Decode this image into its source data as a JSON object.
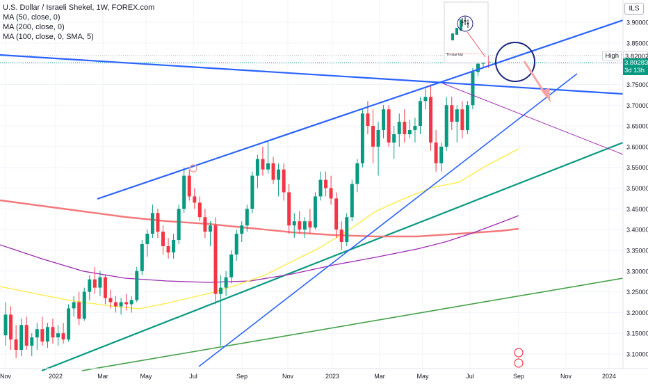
{
  "header": {
    "symbol_title": "U.S. Dollar / Israeli Shekel, 1W, FOREX.com",
    "indicators": [
      "MA (50, close, 0)",
      "MA (200, close, 0)",
      "MA (100, close, 0, SMA, 5)"
    ],
    "currency": "ILS"
  },
  "price_tags": {
    "high_label": "High",
    "high_value": "3.82002",
    "last_value": "3.80283",
    "countdown": "3d 13h"
  },
  "inset_annotation": {
    "text": "Tri-star top"
  },
  "colors": {
    "up": "#089981",
    "down": "#f23645",
    "trendline": "#2962ff",
    "ma50": "#ffeb3b",
    "ma200": "#f4787a",
    "ma100": "#9c27b0",
    "support_teal": "#089981",
    "support_green": "#43a047",
    "arrow": "#f7a4a4"
  },
  "chart_data": {
    "type": "candlestick",
    "y_axis_ticks": [
      "3.90000",
      "3.85000",
      "3.80000",
      "3.75000",
      "3.70000",
      "3.65000",
      "3.60000",
      "3.55000",
      "3.50000",
      "3.45000",
      "3.40000",
      "3.35000",
      "3.30000",
      "3.25000",
      "3.20000",
      "3.15000",
      "3.10000"
    ],
    "x_axis_ticks": [
      "Nov",
      "2022",
      "Mar",
      "May",
      "Jul",
      "Sep",
      "Nov",
      "2023",
      "Mar",
      "May",
      "Jul",
      "Sep",
      "Nov",
      "2024"
    ],
    "ylim": [
      3.08,
      3.92
    ],
    "candles": [
      {
        "o": 3.145,
        "h": 3.225,
        "l": 3.12,
        "c": 3.195
      },
      {
        "o": 3.195,
        "h": 3.215,
        "l": 3.11,
        "c": 3.135
      },
      {
        "o": 3.135,
        "h": 3.17,
        "l": 3.09,
        "c": 3.11
      },
      {
        "o": 3.11,
        "h": 3.185,
        "l": 3.095,
        "c": 3.17
      },
      {
        "o": 3.17,
        "h": 3.19,
        "l": 3.11,
        "c": 3.12
      },
      {
        "o": 3.12,
        "h": 3.15,
        "l": 3.095,
        "c": 3.14
      },
      {
        "o": 3.14,
        "h": 3.175,
        "l": 3.11,
        "c": 3.16
      },
      {
        "o": 3.16,
        "h": 3.19,
        "l": 3.12,
        "c": 3.13
      },
      {
        "o": 3.13,
        "h": 3.175,
        "l": 3.115,
        "c": 3.165
      },
      {
        "o": 3.165,
        "h": 3.185,
        "l": 3.125,
        "c": 3.14
      },
      {
        "o": 3.14,
        "h": 3.17,
        "l": 3.12,
        "c": 3.15
      },
      {
        "o": 3.15,
        "h": 3.175,
        "l": 3.125,
        "c": 3.135
      },
      {
        "o": 3.135,
        "h": 3.22,
        "l": 3.13,
        "c": 3.21
      },
      {
        "o": 3.21,
        "h": 3.24,
        "l": 3.19,
        "c": 3.225
      },
      {
        "o": 3.225,
        "h": 3.25,
        "l": 3.17,
        "c": 3.185
      },
      {
        "o": 3.185,
        "h": 3.26,
        "l": 3.18,
        "c": 3.25
      },
      {
        "o": 3.25,
        "h": 3.29,
        "l": 3.23,
        "c": 3.28
      },
      {
        "o": 3.28,
        "h": 3.31,
        "l": 3.245,
        "c": 3.26
      },
      {
        "o": 3.26,
        "h": 3.3,
        "l": 3.24,
        "c": 3.285
      },
      {
        "o": 3.285,
        "h": 3.29,
        "l": 3.22,
        "c": 3.235
      },
      {
        "o": 3.235,
        "h": 3.255,
        "l": 3.21,
        "c": 3.225
      },
      {
        "o": 3.225,
        "h": 3.24,
        "l": 3.2,
        "c": 3.215
      },
      {
        "o": 3.215,
        "h": 3.235,
        "l": 3.195,
        "c": 3.225
      },
      {
        "o": 3.225,
        "h": 3.245,
        "l": 3.205,
        "c": 3.22
      },
      {
        "o": 3.22,
        "h": 3.24,
        "l": 3.2,
        "c": 3.23
      },
      {
        "o": 3.23,
        "h": 3.31,
        "l": 3.225,
        "c": 3.3
      },
      {
        "o": 3.3,
        "h": 3.375,
        "l": 3.29,
        "c": 3.365
      },
      {
        "o": 3.365,
        "h": 3.4,
        "l": 3.335,
        "c": 3.39
      },
      {
        "o": 3.39,
        "h": 3.46,
        "l": 3.38,
        "c": 3.44
      },
      {
        "o": 3.44,
        "h": 3.45,
        "l": 3.38,
        "c": 3.395
      },
      {
        "o": 3.395,
        "h": 3.41,
        "l": 3.34,
        "c": 3.36
      },
      {
        "o": 3.36,
        "h": 3.38,
        "l": 3.33,
        "c": 3.345
      },
      {
        "o": 3.345,
        "h": 3.39,
        "l": 3.33,
        "c": 3.375
      },
      {
        "o": 3.375,
        "h": 3.46,
        "l": 3.365,
        "c": 3.45
      },
      {
        "o": 3.45,
        "h": 3.55,
        "l": 3.44,
        "c": 3.53
      },
      {
        "o": 3.53,
        "h": 3.545,
        "l": 3.47,
        "c": 3.48
      },
      {
        "o": 3.48,
        "h": 3.5,
        "l": 3.45,
        "c": 3.465
      },
      {
        "o": 3.465,
        "h": 3.48,
        "l": 3.42,
        "c": 3.43
      },
      {
        "o": 3.43,
        "h": 3.45,
        "l": 3.38,
        "c": 3.395
      },
      {
        "o": 3.395,
        "h": 3.42,
        "l": 3.36,
        "c": 3.41
      },
      {
        "o": 3.41,
        "h": 3.43,
        "l": 3.22,
        "c": 3.245
      },
      {
        "o": 3.245,
        "h": 3.29,
        "l": 3.12,
        "c": 3.26
      },
      {
        "o": 3.26,
        "h": 3.3,
        "l": 3.24,
        "c": 3.285
      },
      {
        "o": 3.285,
        "h": 3.35,
        "l": 3.27,
        "c": 3.34
      },
      {
        "o": 3.34,
        "h": 3.4,
        "l": 3.325,
        "c": 3.39
      },
      {
        "o": 3.39,
        "h": 3.42,
        "l": 3.37,
        "c": 3.41
      },
      {
        "o": 3.41,
        "h": 3.46,
        "l": 3.395,
        "c": 3.45
      },
      {
        "o": 3.45,
        "h": 3.54,
        "l": 3.44,
        "c": 3.53
      },
      {
        "o": 3.53,
        "h": 3.58,
        "l": 3.5,
        "c": 3.57
      },
      {
        "o": 3.57,
        "h": 3.6,
        "l": 3.53,
        "c": 3.545
      },
      {
        "o": 3.545,
        "h": 3.615,
        "l": 3.535,
        "c": 3.56
      },
      {
        "o": 3.56,
        "h": 3.575,
        "l": 3.51,
        "c": 3.52
      },
      {
        "o": 3.52,
        "h": 3.56,
        "l": 3.48,
        "c": 3.545
      },
      {
        "o": 3.545,
        "h": 3.56,
        "l": 3.47,
        "c": 3.49
      },
      {
        "o": 3.49,
        "h": 3.51,
        "l": 3.39,
        "c": 3.41
      },
      {
        "o": 3.41,
        "h": 3.44,
        "l": 3.38,
        "c": 3.42
      },
      {
        "o": 3.42,
        "h": 3.445,
        "l": 3.39,
        "c": 3.4
      },
      {
        "o": 3.4,
        "h": 3.43,
        "l": 3.38,
        "c": 3.42
      },
      {
        "o": 3.42,
        "h": 3.45,
        "l": 3.39,
        "c": 3.405
      },
      {
        "o": 3.405,
        "h": 3.49,
        "l": 3.4,
        "c": 3.48
      },
      {
        "o": 3.48,
        "h": 3.54,
        "l": 3.47,
        "c": 3.52
      },
      {
        "o": 3.52,
        "h": 3.54,
        "l": 3.48,
        "c": 3.5
      },
      {
        "o": 3.5,
        "h": 3.53,
        "l": 3.46,
        "c": 3.475
      },
      {
        "o": 3.475,
        "h": 3.49,
        "l": 3.38,
        "c": 3.4
      },
      {
        "o": 3.4,
        "h": 3.42,
        "l": 3.35,
        "c": 3.37
      },
      {
        "o": 3.37,
        "h": 3.44,
        "l": 3.36,
        "c": 3.43
      },
      {
        "o": 3.43,
        "h": 3.52,
        "l": 3.42,
        "c": 3.51
      },
      {
        "o": 3.51,
        "h": 3.57,
        "l": 3.49,
        "c": 3.56
      },
      {
        "o": 3.56,
        "h": 3.69,
        "l": 3.55,
        "c": 3.68
      },
      {
        "o": 3.68,
        "h": 3.71,
        "l": 3.63,
        "c": 3.65
      },
      {
        "o": 3.65,
        "h": 3.69,
        "l": 3.56,
        "c": 3.6
      },
      {
        "o": 3.6,
        "h": 3.66,
        "l": 3.53,
        "c": 3.64
      },
      {
        "o": 3.64,
        "h": 3.7,
        "l": 3.62,
        "c": 3.69
      },
      {
        "o": 3.69,
        "h": 3.7,
        "l": 3.6,
        "c": 3.61
      },
      {
        "o": 3.61,
        "h": 3.65,
        "l": 3.57,
        "c": 3.63
      },
      {
        "o": 3.63,
        "h": 3.68,
        "l": 3.6,
        "c": 3.66
      },
      {
        "o": 3.66,
        "h": 3.69,
        "l": 3.61,
        "c": 3.63
      },
      {
        "o": 3.63,
        "h": 3.665,
        "l": 3.62,
        "c": 3.64
      },
      {
        "o": 3.64,
        "h": 3.67,
        "l": 3.61,
        "c": 3.65
      },
      {
        "o": 3.65,
        "h": 3.72,
        "l": 3.63,
        "c": 3.71
      },
      {
        "o": 3.71,
        "h": 3.74,
        "l": 3.69,
        "c": 3.72
      },
      {
        "o": 3.72,
        "h": 3.75,
        "l": 3.59,
        "c": 3.61
      },
      {
        "o": 3.61,
        "h": 3.64,
        "l": 3.54,
        "c": 3.56
      },
      {
        "o": 3.56,
        "h": 3.61,
        "l": 3.54,
        "c": 3.6
      },
      {
        "o": 3.6,
        "h": 3.72,
        "l": 3.59,
        "c": 3.7
      },
      {
        "o": 3.7,
        "h": 3.72,
        "l": 3.64,
        "c": 3.66
      },
      {
        "o": 3.66,
        "h": 3.7,
        "l": 3.61,
        "c": 3.69
      },
      {
        "o": 3.69,
        "h": 3.71,
        "l": 3.62,
        "c": 3.64
      },
      {
        "o": 3.64,
        "h": 3.71,
        "l": 3.63,
        "c": 3.7
      },
      {
        "o": 3.7,
        "h": 3.79,
        "l": 3.69,
        "c": 3.78
      },
      {
        "o": 3.78,
        "h": 3.815,
        "l": 3.77,
        "c": 3.8
      },
      {
        "o": 3.8,
        "h": 3.815,
        "l": 3.79,
        "c": 3.805
      },
      {
        "o": 3.805,
        "h": 3.82,
        "l": 3.79,
        "c": 3.803
      }
    ]
  }
}
